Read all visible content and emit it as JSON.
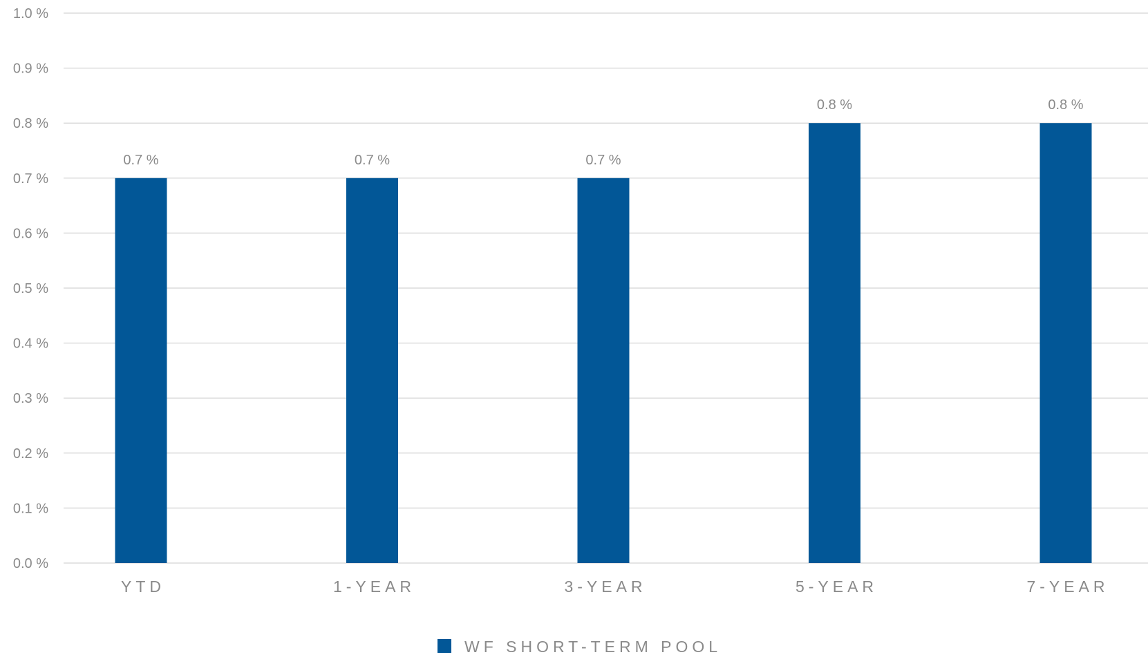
{
  "chart_data": {
    "type": "bar",
    "categories": [
      "YTD",
      "1-YEAR",
      "3-YEAR",
      "5-YEAR",
      "7-YEAR"
    ],
    "series": [
      {
        "name": "WF SHORT-TERM POOL",
        "values": [
          0.7,
          0.7,
          0.7,
          0.8,
          0.8
        ],
        "color": "#025797"
      }
    ],
    "data_labels": [
      "0.7 %",
      "0.7 %",
      "0.7 %",
      "0.8 %",
      "0.8 %"
    ],
    "y_ticks": [
      "0.0 %",
      "0.1 %",
      "0.2 %",
      "0.3 %",
      "0.4 %",
      "0.5 %",
      "0.6 %",
      "0.7 %",
      "0.8 %",
      "0.9 %",
      "1.0 %"
    ],
    "ylim": [
      0,
      1.0
    ],
    "grid": true,
    "legend_position": "bottom-center",
    "title": "",
    "xlabel": "",
    "ylabel": ""
  }
}
